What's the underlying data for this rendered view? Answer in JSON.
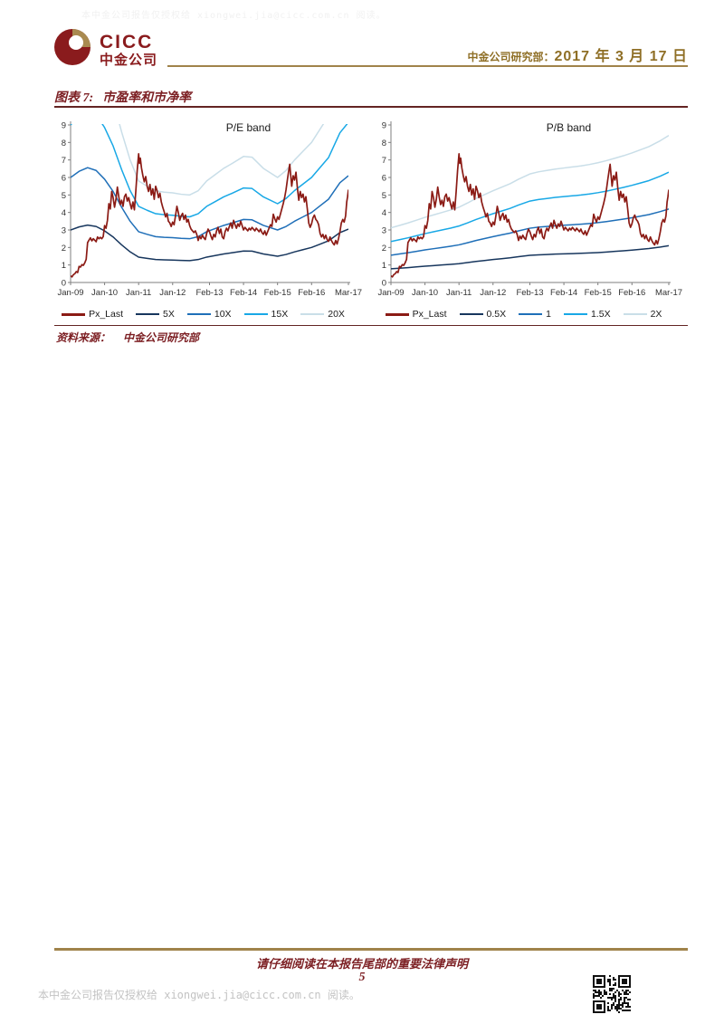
{
  "page": {
    "watermark": "本中金公司报告仅授权给 xiongwei.jia@cicc.com.cn 阅读。"
  },
  "header": {
    "logo_en": "CICC",
    "logo_cn": "中金公司",
    "dept": "中金公司研究部：",
    "date": "2017 年 3 月 17 日"
  },
  "figure": {
    "label": "图表 7:",
    "title": "市盈率和市净率",
    "source_label": "资料来源：",
    "source": "中金公司研究部"
  },
  "footer": {
    "legal": "请仔细阅读在本报告尾部的重要法律声明",
    "page_number": "5",
    "authorization": "本中金公司报告仅授权给 xiongwei.jia@cicc.com.cn 阅读。"
  },
  "colors": {
    "price": "#8B1B15",
    "navy": "#17365D",
    "blue": "#1F6FB8",
    "cyan": "#18A8E6",
    "pale_blue": "#C9DEE8",
    "gold": "#A0834A",
    "dark_red_text": "#7C1F23",
    "axis": "#7F7F7F"
  },
  "shared_price_points": [
    [
      0,
      0.38
    ],
    [
      0.5,
      0.32
    ],
    [
      1,
      0.45
    ],
    [
      1.5,
      0.5
    ],
    [
      2,
      0.62
    ],
    [
      2.5,
      0.57
    ],
    [
      3,
      0.92
    ],
    [
      3.5,
      0.88
    ],
    [
      4,
      1.02
    ],
    [
      4.5,
      0.98
    ],
    [
      5,
      1.12
    ],
    [
      5.5,
      1.32
    ],
    [
      6,
      2.28
    ],
    [
      6.5,
      2.42
    ],
    [
      7,
      2.55
    ],
    [
      7.5,
      2.38
    ],
    [
      8,
      2.5
    ],
    [
      8.5,
      2.42
    ],
    [
      9,
      2.33
    ],
    [
      9.5,
      2.6
    ],
    [
      10,
      2.5
    ],
    [
      10.5,
      2.58
    ],
    [
      11,
      2.5
    ],
    [
      11.5,
      2.62
    ],
    [
      12,
      3.25
    ],
    [
      12.5,
      3.1
    ],
    [
      13,
      3.55
    ],
    [
      13.5,
      4.5
    ],
    [
      14,
      4.2
    ],
    [
      14.5,
      5.2
    ],
    [
      15,
      4.85
    ],
    [
      15.5,
      4.3
    ],
    [
      16,
      4.75
    ],
    [
      16.5,
      5.45
    ],
    [
      17,
      4.9
    ],
    [
      17.5,
      4.45
    ],
    [
      18,
      4.7
    ],
    [
      18.5,
      4.35
    ],
    [
      19,
      4.9
    ],
    [
      19.5,
      5.05
    ],
    [
      20,
      4.65
    ],
    [
      20.5,
      4.85
    ],
    [
      21,
      4.5
    ],
    [
      21.5,
      4.2
    ],
    [
      22,
      4.6
    ],
    [
      22.5,
      4.15
    ],
    [
      23,
      5.2
    ],
    [
      23.5,
      6.4
    ],
    [
      24,
      7.35
    ],
    [
      24.3,
      6.8
    ],
    [
      24.6,
      7.1
    ],
    [
      25,
      6.55
    ],
    [
      25.5,
      6.1
    ],
    [
      26,
      5.75
    ],
    [
      26.5,
      6.05
    ],
    [
      27,
      5.5
    ],
    [
      27.5,
      5.2
    ],
    [
      28,
      5.6
    ],
    [
      28.5,
      5.0
    ],
    [
      29,
      5.35
    ],
    [
      29.5,
      4.75
    ],
    [
      30,
      5.5
    ],
    [
      30.5,
      5.25
    ],
    [
      31,
      4.85
    ],
    [
      31.5,
      5.1
    ],
    [
      32,
      4.6
    ],
    [
      32.5,
      4.3
    ],
    [
      33,
      4.05
    ],
    [
      33.5,
      3.75
    ],
    [
      34,
      3.95
    ],
    [
      34.5,
      3.5
    ],
    [
      35,
      3.4
    ],
    [
      35.5,
      3.2
    ],
    [
      36,
      3.45
    ],
    [
      36.5,
      3.3
    ],
    [
      37,
      3.8
    ],
    [
      37.5,
      4.35
    ],
    [
      38,
      4.0
    ],
    [
      38.5,
      3.55
    ],
    [
      39,
      3.8
    ],
    [
      39.5,
      3.95
    ],
    [
      40,
      3.6
    ],
    [
      40.5,
      3.85
    ],
    [
      41,
      3.45
    ],
    [
      41.5,
      3.6
    ],
    [
      42,
      3.25
    ],
    [
      42.5,
      3.05
    ],
    [
      43,
      2.95
    ],
    [
      43.5,
      2.85
    ],
    [
      44,
      2.95
    ],
    [
      44.5,
      2.75
    ],
    [
      45,
      2.4
    ],
    [
      45.5,
      2.65
    ],
    [
      46,
      2.5
    ],
    [
      46.5,
      2.7
    ],
    [
      47,
      2.55
    ],
    [
      47.5,
      2.45
    ],
    [
      48,
      2.8
    ],
    [
      48.5,
      3.05
    ],
    [
      49,
      2.9
    ],
    [
      49.5,
      2.65
    ],
    [
      50,
      2.45
    ],
    [
      50.5,
      2.75
    ],
    [
      51,
      2.6
    ],
    [
      51.5,
      2.95
    ],
    [
      52,
      3.15
    ],
    [
      52.5,
      2.8
    ],
    [
      53,
      3.05
    ],
    [
      53.5,
      2.6
    ],
    [
      54,
      2.5
    ],
    [
      54.5,
      2.9
    ],
    [
      55,
      3.1
    ],
    [
      55.5,
      2.95
    ],
    [
      56,
      3.2
    ],
    [
      56.5,
      3.4
    ],
    [
      57,
      3.1
    ],
    [
      57.5,
      3.55
    ],
    [
      58,
      3.3
    ],
    [
      58.5,
      3.1
    ],
    [
      59,
      3.35
    ],
    [
      59.5,
      3.2
    ],
    [
      60,
      3.5
    ],
    [
      60.5,
      3.25
    ],
    [
      61,
      3.0
    ],
    [
      61.5,
      3.15
    ],
    [
      62,
      3.05
    ],
    [
      62.5,
      2.95
    ],
    [
      63,
      3.1
    ],
    [
      63.5,
      3.0
    ],
    [
      64,
      3.15
    ],
    [
      64.5,
      3.05
    ],
    [
      65,
      2.95
    ],
    [
      65.5,
      3.1
    ],
    [
      66,
      3.0
    ],
    [
      66.5,
      2.9
    ],
    [
      67,
      3.05
    ],
    [
      67.5,
      2.85
    ],
    [
      68,
      2.75
    ],
    [
      68.5,
      2.95
    ],
    [
      69,
      2.7
    ],
    [
      69.5,
      2.9
    ],
    [
      70,
      3.1
    ],
    [
      70.5,
      3.3
    ],
    [
      71,
      3.2
    ],
    [
      71.5,
      3.9
    ],
    [
      72,
      3.65
    ],
    [
      72.5,
      3.45
    ],
    [
      73,
      3.75
    ],
    [
      73.5,
      3.6
    ],
    [
      74,
      3.9
    ],
    [
      74.5,
      4.2
    ],
    [
      75,
      4.5
    ],
    [
      75.5,
      4.85
    ],
    [
      76,
      5.3
    ],
    [
      76.5,
      5.9
    ],
    [
      77,
      6.45
    ],
    [
      77.3,
      6.75
    ],
    [
      77.6,
      6.2
    ],
    [
      78,
      5.5
    ],
    [
      78.5,
      6.1
    ],
    [
      79,
      5.85
    ],
    [
      79.5,
      6.3
    ],
    [
      80,
      5.4
    ],
    [
      80.5,
      4.7
    ],
    [
      81,
      5.2
    ],
    [
      81.5,
      4.85
    ],
    [
      82,
      5.05
    ],
    [
      82.5,
      4.6
    ],
    [
      83,
      4.9
    ],
    [
      83.5,
      4.2
    ],
    [
      84,
      3.4
    ],
    [
      84.5,
      3.15
    ],
    [
      85,
      3.35
    ],
    [
      85.5,
      3.7
    ],
    [
      86,
      3.85
    ],
    [
      86.5,
      3.6
    ],
    [
      87,
      3.5
    ],
    [
      87.5,
      3.3
    ],
    [
      88,
      2.8
    ],
    [
      88.5,
      2.6
    ],
    [
      89,
      2.75
    ],
    [
      89.5,
      2.5
    ],
    [
      90,
      2.7
    ],
    [
      90.5,
      2.45
    ],
    [
      91,
      2.35
    ],
    [
      91.5,
      2.6
    ],
    [
      92,
      2.4
    ],
    [
      92.5,
      2.25
    ],
    [
      93,
      2.15
    ],
    [
      93.5,
      2.4
    ],
    [
      94,
      2.2
    ],
    [
      94.5,
      2.5
    ],
    [
      95,
      2.9
    ],
    [
      95.5,
      3.4
    ],
    [
      96,
      3.6
    ],
    [
      96.5,
      3.45
    ],
    [
      97,
      3.8
    ],
    [
      97.4,
      4.6
    ],
    [
      97.7,
      4.9
    ],
    [
      98,
      5.3
    ]
  ],
  "chart_data": [
    {
      "type": "line",
      "title": "P/E band",
      "ylim": [
        0,
        9
      ],
      "yticks": [
        0,
        1,
        2,
        3,
        4,
        5,
        6,
        7,
        8,
        9
      ],
      "x_months_total": 98,
      "xticks": [
        {
          "m": 0,
          "label": "Jan-09"
        },
        {
          "m": 12,
          "label": "Jan-10"
        },
        {
          "m": 24,
          "label": "Jan-11"
        },
        {
          "m": 36,
          "label": "Jan-12"
        },
        {
          "m": 49,
          "label": "Feb-13"
        },
        {
          "m": 61,
          "label": "Feb-14"
        },
        {
          "m": 73,
          "label": "Feb-15"
        },
        {
          "m": 85,
          "label": "Feb-16"
        },
        {
          "m": 98,
          "label": "Mar-17"
        }
      ],
      "price_name": "Px_Last",
      "price_ref": "shared_price_points",
      "band_base_points": [
        [
          0,
          0.6
        ],
        [
          3,
          0.635
        ],
        [
          6,
          0.656
        ],
        [
          9,
          0.64
        ],
        [
          12,
          0.59
        ],
        [
          15,
          0.52
        ],
        [
          18,
          0.43
        ],
        [
          21,
          0.35
        ],
        [
          24,
          0.29
        ],
        [
          27,
          0.275
        ],
        [
          30,
          0.262
        ],
        [
          33,
          0.258
        ],
        [
          36,
          0.256
        ],
        [
          39,
          0.252
        ],
        [
          42,
          0.25
        ],
        [
          45,
          0.262
        ],
        [
          48,
          0.29
        ],
        [
          51,
          0.308
        ],
        [
          54,
          0.326
        ],
        [
          57,
          0.34
        ],
        [
          61,
          0.36
        ],
        [
          64,
          0.358
        ],
        [
          68,
          0.326
        ],
        [
          73,
          0.3
        ],
        [
          76,
          0.32
        ],
        [
          79,
          0.35
        ],
        [
          82,
          0.375
        ],
        [
          85,
          0.4
        ],
        [
          88,
          0.438
        ],
        [
          91,
          0.476
        ],
        [
          95,
          0.57
        ],
        [
          98,
          0.61
        ]
      ],
      "bands": [
        {
          "name": "5X",
          "multiplier": 5,
          "color": "#17365D"
        },
        {
          "name": "10X",
          "multiplier": 10,
          "color": "#1F6FB8"
        },
        {
          "name": "15X",
          "multiplier": 15,
          "color": "#18A8E6"
        },
        {
          "name": "20X",
          "multiplier": 20,
          "color": "#C9DEE8"
        }
      ],
      "legend": [
        "Px_Last",
        "5X",
        "10X",
        "15X",
        "20X"
      ],
      "grid": false,
      "legend_position": "bottom"
    },
    {
      "type": "line",
      "title": "P/B band",
      "ylim": [
        0,
        9
      ],
      "yticks": [
        0,
        1,
        2,
        3,
        4,
        5,
        6,
        7,
        8,
        9
      ],
      "x_months_total": 98,
      "xticks": [
        {
          "m": 0,
          "label": "Jan-09"
        },
        {
          "m": 12,
          "label": "Jan-10"
        },
        {
          "m": 24,
          "label": "Jan-11"
        },
        {
          "m": 36,
          "label": "Jan-12"
        },
        {
          "m": 49,
          "label": "Feb-13"
        },
        {
          "m": 61,
          "label": "Feb-14"
        },
        {
          "m": 73,
          "label": "Feb-15"
        },
        {
          "m": 85,
          "label": "Feb-16"
        },
        {
          "m": 98,
          "label": "Mar-17"
        }
      ],
      "price_name": "Px_Last",
      "price_ref": "shared_price_points",
      "band_base_points": [
        [
          0,
          1.56
        ],
        [
          3,
          1.63
        ],
        [
          6,
          1.7
        ],
        [
          9,
          1.78
        ],
        [
          12,
          1.86
        ],
        [
          15,
          1.93
        ],
        [
          18,
          2.0
        ],
        [
          21,
          2.07
        ],
        [
          24,
          2.15
        ],
        [
          27,
          2.27
        ],
        [
          30,
          2.4
        ],
        [
          33,
          2.51
        ],
        [
          36,
          2.62
        ],
        [
          39,
          2.72
        ],
        [
          42,
          2.82
        ],
        [
          45,
          2.95
        ],
        [
          49,
          3.1
        ],
        [
          52,
          3.16
        ],
        [
          55,
          3.2
        ],
        [
          58,
          3.24
        ],
        [
          61,
          3.27
        ],
        [
          64,
          3.3
        ],
        [
          67,
          3.33
        ],
        [
          70,
          3.37
        ],
        [
          73,
          3.42
        ],
        [
          76,
          3.48
        ],
        [
          79,
          3.55
        ],
        [
          82,
          3.62
        ],
        [
          85,
          3.7
        ],
        [
          88,
          3.79
        ],
        [
          91,
          3.88
        ],
        [
          95,
          4.05
        ],
        [
          98,
          4.2
        ]
      ],
      "bands": [
        {
          "name": "0.5X",
          "multiplier": 0.5,
          "color": "#17365D"
        },
        {
          "name": "1",
          "multiplier": 1,
          "color": "#1F6FB8"
        },
        {
          "name": "1.5X",
          "multiplier": 1.5,
          "color": "#18A8E6"
        },
        {
          "name": "2X",
          "multiplier": 2,
          "color": "#C9DEE8"
        }
      ],
      "legend": [
        "Px_Last",
        "0.5X",
        "1",
        "1.5X",
        "2X"
      ],
      "grid": false,
      "legend_position": "bottom"
    }
  ]
}
